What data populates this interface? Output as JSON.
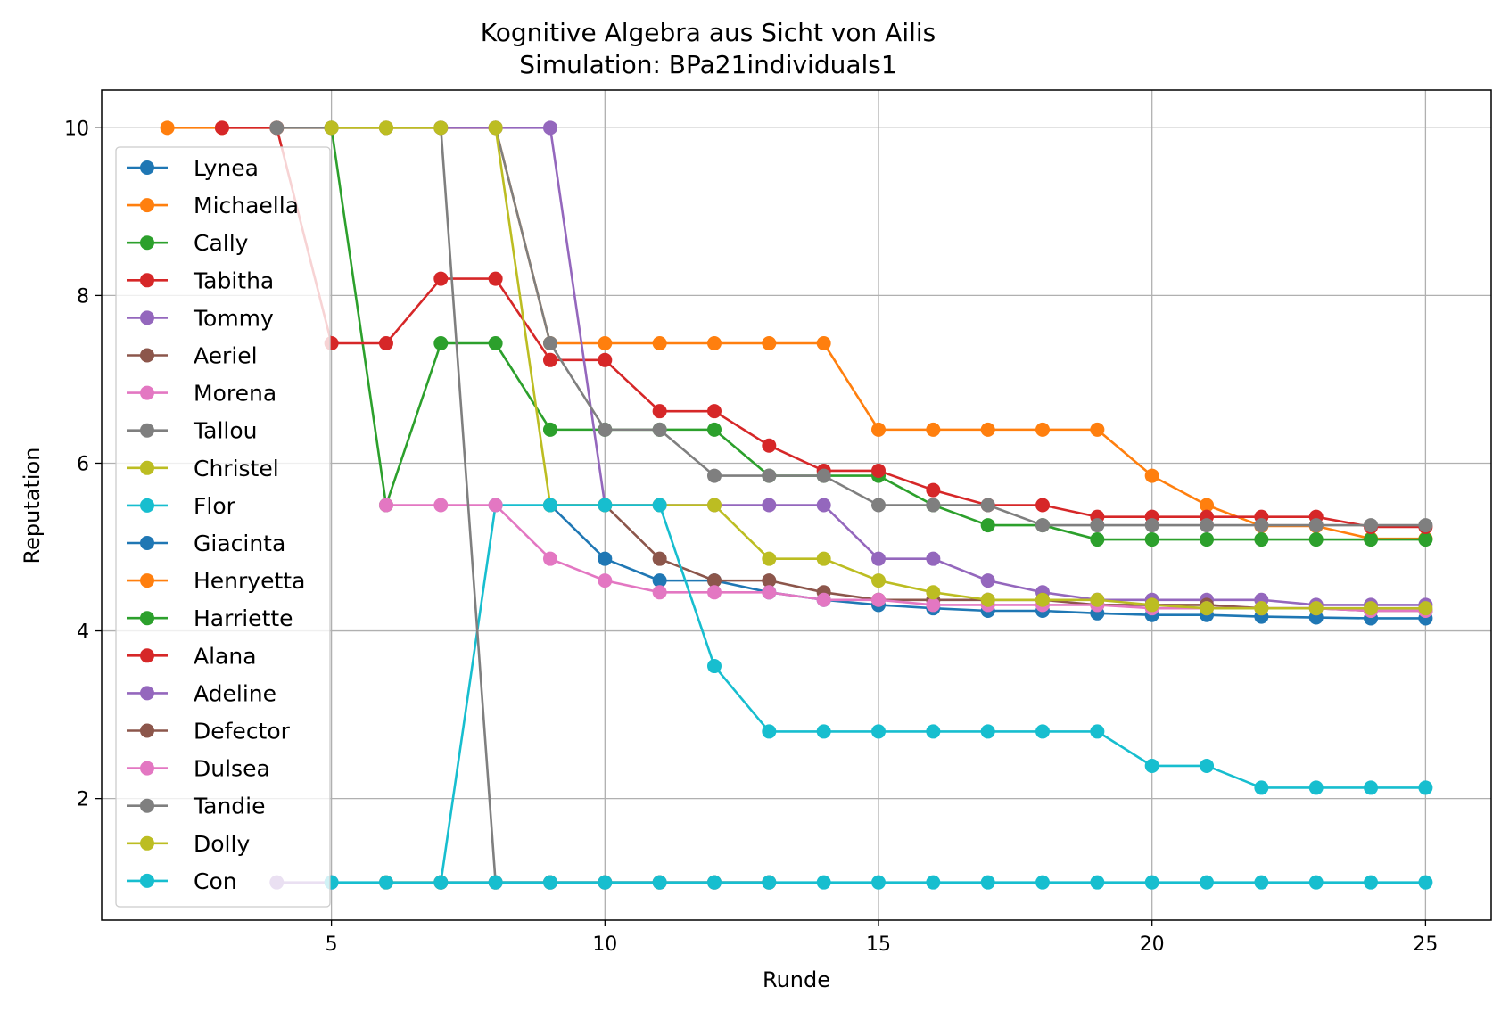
{
  "chart_data": {
    "type": "line",
    "title": "Kognitive Algebra aus Sicht von Ailis",
    "subtitle": "Simulation: BPa21individuals1",
    "xlabel": "Runde",
    "ylabel": "Reputation",
    "xlim": [
      0.8,
      26.2
    ],
    "ylim": [
      0.55,
      10.45
    ],
    "xticks": [
      5,
      10,
      15,
      20,
      25
    ],
    "yticks": [
      2,
      4,
      6,
      8,
      10
    ],
    "grid": true,
    "legend_position": "upper-left",
    "marker": "circle",
    "series": [
      {
        "name": "Lynea",
        "color": "#1f77b4",
        "x": [
          9,
          10,
          11,
          12,
          13,
          14,
          15,
          16,
          17,
          18,
          19,
          20,
          21,
          22,
          23,
          24,
          25
        ],
        "y": [
          5.5,
          4.86,
          4.6,
          4.6,
          4.46,
          4.37,
          4.31,
          4.27,
          4.24,
          4.24,
          4.21,
          4.19,
          4.19,
          4.17,
          4.16,
          4.15,
          4.15
        ]
      },
      {
        "name": "Michaella",
        "color": "#ff7f0e",
        "x": [
          2,
          3,
          4,
          5,
          6,
          7,
          8,
          9,
          10,
          11,
          12,
          13,
          14,
          15,
          16,
          17,
          18,
          19,
          20,
          21,
          22,
          23,
          24,
          25
        ],
        "y": [
          10,
          10,
          10,
          10,
          10,
          10,
          10,
          7.43,
          7.43,
          7.43,
          7.43,
          7.43,
          7.43,
          6.4,
          6.4,
          6.4,
          6.4,
          6.4,
          5.85,
          5.5,
          5.25,
          5.25,
          5.1,
          5.1
        ]
      },
      {
        "name": "Cally",
        "color": "#2ca02c",
        "x": [
          5,
          6,
          7,
          8,
          9,
          10,
          11,
          12,
          13,
          14,
          15,
          16,
          17,
          18,
          19,
          20,
          21,
          22,
          23,
          24,
          25
        ],
        "y": [
          10,
          5.5,
          7.43,
          7.43,
          6.4,
          6.4,
          6.4,
          6.4,
          5.85,
          5.85,
          5.85,
          5.5,
          5.26,
          5.26,
          5.09,
          5.09,
          5.09,
          5.09,
          5.09,
          5.09,
          5.09
        ]
      },
      {
        "name": "Tabitha",
        "color": "#d62728",
        "x": [
          3,
          4,
          5,
          6,
          7,
          8,
          9,
          10,
          11,
          12,
          13,
          14,
          15,
          16,
          17,
          18,
          19,
          20,
          21,
          22,
          23,
          24,
          25
        ],
        "y": [
          10,
          10,
          7.43,
          7.43,
          8.2,
          8.2,
          7.23,
          7.23,
          6.62,
          6.62,
          6.21,
          5.91,
          5.91,
          5.68,
          5.5,
          5.5,
          5.36,
          5.36,
          5.36,
          5.36,
          5.36,
          5.24,
          5.24
        ]
      },
      {
        "name": "Tommy",
        "color": "#9467bd",
        "x": [
          7,
          8,
          9,
          10,
          11,
          12,
          13,
          14,
          15,
          16,
          17,
          18,
          19,
          20,
          21,
          22,
          23,
          24,
          25
        ],
        "y": [
          10,
          10,
          10,
          5.5,
          5.5,
          5.5,
          5.5,
          5.5,
          4.86,
          4.86,
          4.6,
          4.46,
          4.37,
          4.37,
          4.37,
          4.37,
          4.31,
          4.31,
          4.31
        ]
      },
      {
        "name": "Aeriel",
        "color": "#8c564b",
        "x": [
          9,
          10,
          11,
          12,
          13,
          14,
          15,
          16,
          17,
          18,
          19,
          20,
          21,
          22,
          23,
          24,
          25
        ],
        "y": [
          5.5,
          5.5,
          4.86,
          4.6,
          4.6,
          4.46,
          4.37,
          4.37,
          4.37,
          4.37,
          4.31,
          4.31,
          4.31,
          4.27,
          4.27,
          4.24,
          4.24
        ]
      },
      {
        "name": "Morena",
        "color": "#e377c2",
        "x": [
          8,
          9,
          10,
          11,
          12,
          13,
          14,
          15,
          16,
          17,
          18,
          19,
          20,
          21,
          22,
          23,
          24,
          25
        ],
        "y": [
          5.5,
          4.86,
          4.6,
          4.46,
          4.46,
          4.46,
          4.37,
          4.37,
          4.31,
          4.31,
          4.31,
          4.31,
          4.27,
          4.27,
          4.27,
          4.27,
          4.24,
          4.24
        ]
      },
      {
        "name": "Tallou",
        "color": "#7f7f7f",
        "x": [
          8,
          9,
          10,
          11,
          12,
          13,
          14,
          15,
          16,
          17,
          18,
          19,
          20,
          21,
          22,
          23,
          24,
          25
        ],
        "y": [
          10,
          7.43,
          6.4,
          6.4,
          5.85,
          5.85,
          5.85,
          5.5,
          5.5,
          5.5,
          5.26,
          5.26,
          5.26,
          5.26,
          5.26,
          5.26,
          5.26,
          5.26
        ]
      },
      {
        "name": "Christel",
        "color": "#bcbd22",
        "x": [
          8,
          9,
          10,
          11,
          12,
          13,
          14,
          15,
          16,
          17,
          18,
          19,
          20,
          21,
          22,
          23,
          24,
          25
        ],
        "y": [
          10,
          5.5,
          5.5,
          5.5,
          5.5,
          4.86,
          4.86,
          4.6,
          4.46,
          4.37,
          4.37,
          4.37,
          4.31,
          4.27,
          4.27,
          4.27,
          4.27,
          4.27
        ]
      },
      {
        "name": "Flor",
        "color": "#17becf",
        "x": [
          7,
          8,
          9,
          10,
          11,
          12,
          13,
          14,
          15,
          16,
          17,
          18,
          19,
          20,
          21,
          22,
          23,
          24,
          25
        ],
        "y": [
          1,
          5.5,
          5.5,
          5.5,
          5.5,
          3.58,
          2.8,
          2.8,
          2.8,
          2.8,
          2.8,
          2.8,
          2.8,
          2.39,
          2.39,
          2.13,
          2.13,
          2.13,
          2.13
        ]
      },
      {
        "name": "Giacinta",
        "color": "#1f77b4",
        "x": [],
        "y": []
      },
      {
        "name": "Henryetta",
        "color": "#ff7f0e",
        "x": [
          6,
          7
        ],
        "y": [
          1,
          1
        ]
      },
      {
        "name": "Harriette",
        "color": "#2ca02c",
        "x": [],
        "y": []
      },
      {
        "name": "Alana",
        "color": "#d62728",
        "x": [],
        "y": []
      },
      {
        "name": "Adeline",
        "color": "#9467bd",
        "x": [
          4,
          5
        ],
        "y": [
          1,
          1
        ]
      },
      {
        "name": "Defector",
        "color": "#8c564b",
        "x": [
          7,
          8,
          9,
          10,
          11,
          12,
          13
        ],
        "y": [
          1,
          1,
          1,
          1,
          1,
          1,
          1
        ]
      },
      {
        "name": "Dulsea",
        "color": "#e377c2",
        "x": [
          6,
          7,
          8
        ],
        "y": [
          5.5,
          5.5,
          5.5
        ]
      },
      {
        "name": "Tandie",
        "color": "#7f7f7f",
        "x": [
          4,
          5,
          6,
          7,
          8,
          9,
          10,
          11,
          12,
          13
        ],
        "y": [
          10,
          10,
          10,
          10,
          1,
          1,
          1,
          1,
          1,
          1
        ]
      },
      {
        "name": "Dolly",
        "color": "#bcbd22",
        "x": [
          5,
          6,
          7
        ],
        "y": [
          10,
          10,
          10
        ]
      },
      {
        "name": "Con",
        "color": "#17becf",
        "x": [
          5,
          6,
          7,
          8,
          9,
          10,
          11,
          12,
          13,
          14,
          15,
          16,
          17,
          18,
          19,
          20,
          21,
          22,
          23,
          24,
          25
        ],
        "y": [
          1,
          1,
          1,
          1,
          1,
          1,
          1,
          1,
          1,
          1,
          1,
          1,
          1,
          1,
          1,
          1,
          1,
          1,
          1,
          1,
          1
        ]
      }
    ]
  }
}
